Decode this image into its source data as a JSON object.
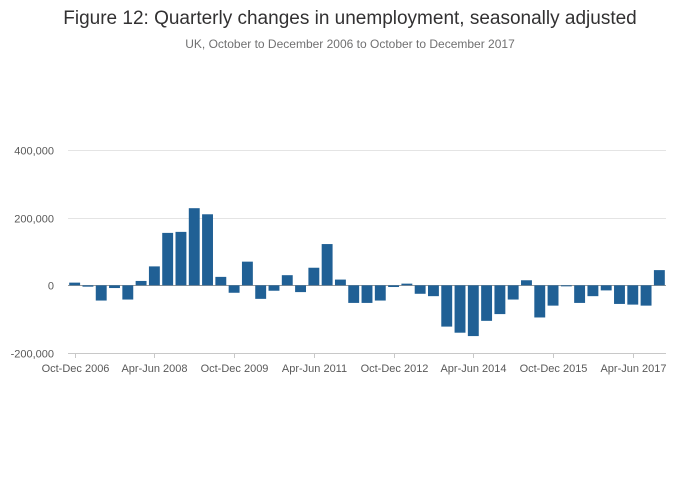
{
  "colors": {
    "bar": "#206095"
  },
  "chart_data": {
    "type": "bar",
    "title": "Figure 12: Quarterly changes in unemployment, seasonally adjusted",
    "subtitle": "UK, October to December 2006 to October to December 2017",
    "xlabel": "",
    "ylabel": "",
    "ylim": [
      -200000,
      400000
    ],
    "yticks": [
      -200000,
      0,
      200000,
      400000
    ],
    "ytick_labels": [
      "-200,000",
      "0",
      "200,000",
      "400,000"
    ],
    "grid": true,
    "legend": "none",
    "x_tick_labels": [
      {
        "label": "Oct-Dec 2006",
        "index": 0
      },
      {
        "label": "Apr-Jun 2008",
        "index": 6
      },
      {
        "label": "Oct-Dec 2009",
        "index": 12
      },
      {
        "label": "Apr-Jun 2011",
        "index": 18
      },
      {
        "label": "Oct-Dec 2012",
        "index": 24
      },
      {
        "label": "Apr-Jun 2014",
        "index": 30
      },
      {
        "label": "Oct-Dec 2015",
        "index": 36
      },
      {
        "label": "Apr-Jun 2017",
        "index": 42
      }
    ],
    "categories": [
      "Oct-Dec 2006",
      "Jan-Mar 2007",
      "Apr-Jun 2007",
      "Jul-Sep 2007",
      "Oct-Dec 2007",
      "Jan-Mar 2008",
      "Apr-Jun 2008",
      "Jul-Sep 2008",
      "Oct-Dec 2008",
      "Jan-Mar 2009",
      "Apr-Jun 2009",
      "Jul-Sep 2009",
      "Oct-Dec 2009",
      "Jan-Mar 2010",
      "Apr-Jun 2010",
      "Jul-Sep 2010",
      "Oct-Dec 2010",
      "Jan-Mar 2011",
      "Apr-Jun 2011",
      "Jul-Sep 2011",
      "Oct-Dec 2011",
      "Jan-Mar 2012",
      "Apr-Jun 2012",
      "Jul-Sep 2012",
      "Oct-Dec 2012",
      "Jan-Mar 2013",
      "Apr-Jun 2013",
      "Jul-Sep 2013",
      "Oct-Dec 2013",
      "Jan-Mar 2014",
      "Apr-Jun 2014",
      "Jul-Sep 2014",
      "Oct-Dec 2014",
      "Jan-Mar 2015",
      "Apr-Jun 2015",
      "Jul-Sep 2015",
      "Oct-Dec 2015",
      "Jan-Mar 2016",
      "Apr-Jun 2016",
      "Jul-Sep 2016",
      "Oct-Dec 2016",
      "Jan-Mar 2017",
      "Apr-Jun 2017",
      "Jul-Sep 2017",
      "Oct-Dec 2017"
    ],
    "values": [
      8000,
      -4000,
      -45000,
      -8000,
      -42000,
      13000,
      56000,
      155000,
      158000,
      228000,
      210000,
      25000,
      -22000,
      70000,
      -40000,
      -16000,
      30000,
      -20000,
      52000,
      122000,
      17000,
      -52000,
      -52000,
      -45000,
      -5000,
      5000,
      -25000,
      -32000,
      -122000,
      -140000,
      -150000,
      -105000,
      -85000,
      -42000,
      15000,
      -95000,
      -60000,
      -3000,
      -52000,
      -32000,
      -15000,
      -55000,
      -57000,
      -60000,
      45000
    ]
  }
}
